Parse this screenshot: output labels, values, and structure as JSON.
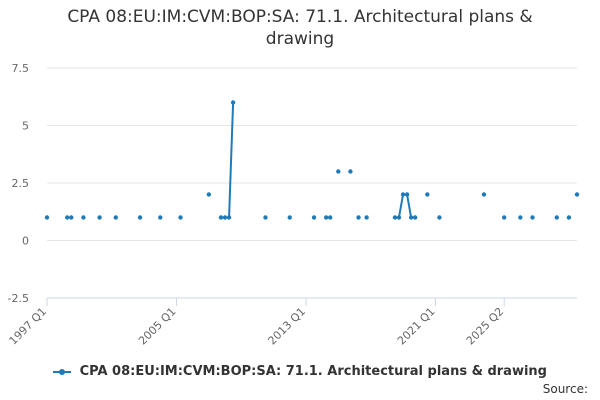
{
  "chart_data": {
    "type": "line",
    "title": "CPA 08:EU:IM:CVM:BOP:SA: 71.1. Architectural plans & drawing",
    "title_lines": [
      "CPA 08:EU:IM:CVM:BOP:SA: 71.1. Architectural plans &",
      "drawing"
    ],
    "xlabel": "",
    "ylabel": "",
    "x_tick_labels": [
      "1997 Q1",
      "2005 Q1",
      "2013 Q1",
      "2021 Q1",
      "2025 Q2"
    ],
    "x_tick_quarters": [
      0,
      32,
      64,
      96,
      113
    ],
    "ylim": [
      -2.5,
      7.5
    ],
    "y_ticks": [
      -2.5,
      0,
      2.5,
      5,
      7.5
    ],
    "y_tick_labels": [
      "-2.5",
      "0",
      "2.5",
      "5",
      "7.5"
    ],
    "grid": true,
    "legend_position": "bottom",
    "series": [
      {
        "name": "CPA 08:EU:IM:CVM:BOP:SA: 71.1. Architectural plans & drawing",
        "color": "#1f7ab8",
        "points": [
          {
            "q": 0,
            "y": 1
          },
          {
            "q": 5,
            "y": 1
          },
          {
            "q": 6,
            "y": 1
          },
          {
            "q": 9,
            "y": 1
          },
          {
            "q": 13,
            "y": 1
          },
          {
            "q": 17,
            "y": 1
          },
          {
            "q": 23,
            "y": 1
          },
          {
            "q": 28,
            "y": 1
          },
          {
            "q": 33,
            "y": 1
          },
          {
            "q": 40,
            "y": 2
          },
          {
            "q": 43,
            "y": 1
          },
          {
            "q": 44,
            "y": 1
          },
          {
            "q": 45,
            "y": 1
          },
          {
            "q": 46,
            "y": 6
          },
          {
            "q": 54,
            "y": 1
          },
          {
            "q": 60,
            "y": 1
          },
          {
            "q": 66,
            "y": 1
          },
          {
            "q": 69,
            "y": 1
          },
          {
            "q": 70,
            "y": 1
          },
          {
            "q": 72,
            "y": 3
          },
          {
            "q": 75,
            "y": 3
          },
          {
            "q": 77,
            "y": 1
          },
          {
            "q": 79,
            "y": 1
          },
          {
            "q": 86,
            "y": 1
          },
          {
            "q": 87,
            "y": 1
          },
          {
            "q": 88,
            "y": 2
          },
          {
            "q": 89,
            "y": 2
          },
          {
            "q": 90,
            "y": 1
          },
          {
            "q": 91,
            "y": 1
          },
          {
            "q": 94,
            "y": 2
          },
          {
            "q": 97,
            "y": 1
          },
          {
            "q": 108,
            "y": 2
          },
          {
            "q": 113,
            "y": 1
          },
          {
            "q": 117,
            "y": 1
          },
          {
            "q": 120,
            "y": 1
          },
          {
            "q": 126,
            "y": 1
          },
          {
            "q": 129,
            "y": 1
          },
          {
            "q": 131,
            "y": 2
          }
        ]
      }
    ]
  },
  "legend": {
    "label": "CPA 08:EU:IM:CVM:BOP:SA: 71.1. Architectural plans & drawing"
  },
  "footer": {
    "source_label": "Source:"
  }
}
